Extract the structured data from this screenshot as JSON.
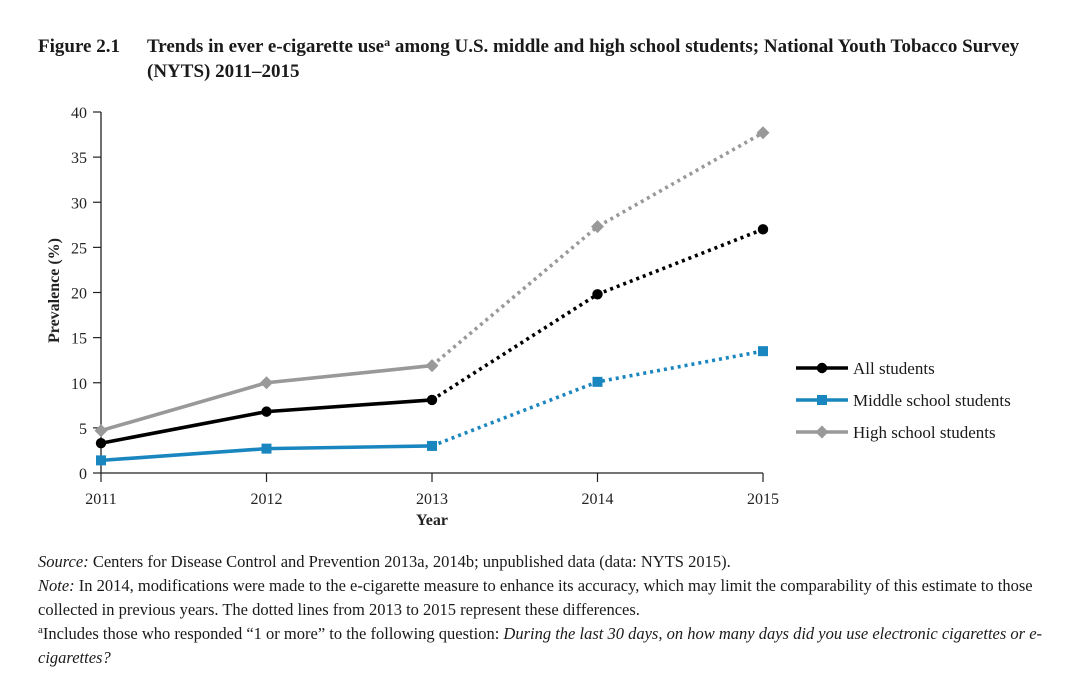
{
  "figure": {
    "label": "Figure 2.1",
    "title_main": "Trends in ever e-cigarette use",
    "title_marker": "a",
    "title_rest": " among U.S. middle and high school students; National Youth Tobacco Survey (NYTS) 2011–2015"
  },
  "chart_data": {
    "type": "line",
    "title": "",
    "xlabel": "Year",
    "ylabel": "Prevalence (%)",
    "x": [
      2011,
      2012,
      2013,
      2014,
      2015
    ],
    "xlim": [
      2011,
      2015
    ],
    "ylim": [
      0,
      40
    ],
    "yticks": [
      0,
      5,
      10,
      15,
      20,
      25,
      30,
      35,
      40
    ],
    "grid": false,
    "legend_position": "right",
    "solid_until": 2013,
    "dotted_from": 2013,
    "series": [
      {
        "name": "All students",
        "color": "#000000",
        "marker": "circle",
        "values": [
          3.3,
          6.8,
          8.1,
          19.8,
          27.0
        ]
      },
      {
        "name": "Middle school students",
        "color": "#1a86bf",
        "marker": "square",
        "values": [
          1.4,
          2.7,
          3.0,
          10.1,
          13.5
        ]
      },
      {
        "name": "High school students",
        "color": "#999999",
        "marker": "diamond",
        "values": [
          4.7,
          10.0,
          11.9,
          27.3,
          37.7
        ]
      }
    ]
  },
  "notes": {
    "source_label": "Source:",
    "source_text": " Centers for Disease Control and Prevention 2013a, 2014b; unpublished data (data: NYTS 2015).",
    "note_label": "Note:",
    "note_text": " In 2014, modifications were made to the e-cigarette measure to enhance its accuracy, which may limit the comparability of this estimate to those collected in previous years. The dotted lines from 2013 to 2015 represent these differences.",
    "footnote_marker": "a",
    "footnote_text": "Includes those who responded “1 or more” to the following question: ",
    "footnote_question": "During the last 30 days, on how many days did you use electronic cigarettes or e-cigarettes?"
  }
}
